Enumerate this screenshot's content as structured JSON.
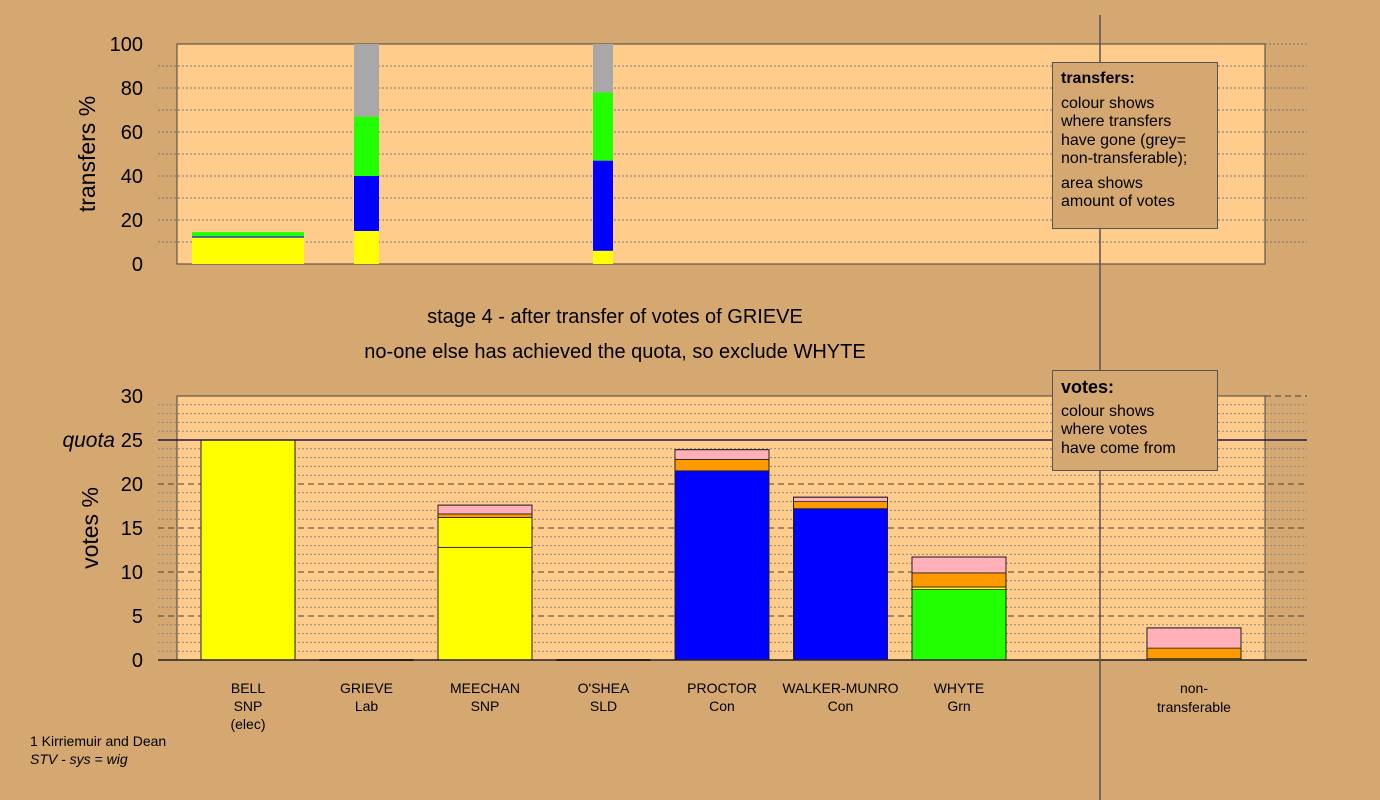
{
  "colors": {
    "background": "#d4a870",
    "plot_background": "#ffcc8c",
    "SNP": "#ffff00",
    "Con": "#0000ff",
    "Grn": "#22ff00",
    "SLD": "#ff9900",
    "Lab": "#ffb0b8",
    "non_transferable": "#a8a8a8"
  },
  "stage_title": "stage 4 - after transfer of votes of GRIEVE",
  "stage_subtitle": "no-one else has achieved the quota, so exclude WHYTE",
  "legend_transfers": {
    "title": "transfers:",
    "lines_a": [
      "colour shows",
      "where transfers",
      "have gone (grey=",
      "non-transferable);"
    ],
    "lines_b": [
      "area shows",
      "amount of votes"
    ]
  },
  "legend_votes": {
    "title": "votes:",
    "lines": [
      "colour shows",
      "where votes",
      "have come from"
    ]
  },
  "footnote": {
    "line1": "1 Kirriemuir and Dean",
    "line2": "STV - sys = wig"
  },
  "chart_data": [
    {
      "type": "bar",
      "stacked": true,
      "ylabel": "transfers %",
      "ylim": [
        0,
        100
      ],
      "yticks": [
        0,
        20,
        40,
        60,
        80,
        100
      ],
      "grid": true,
      "bars": [
        {
          "source": "BELL",
          "segments": [
            {
              "party": "SNP",
              "value": 12
            },
            {
              "party": "Con",
              "value": 0.5
            },
            {
              "party": "Grn",
              "value": 2
            }
          ]
        },
        {
          "source": "GRIEVE",
          "segments": [
            {
              "party": "SNP",
              "value": 15
            },
            {
              "party": "Con",
              "value": 25
            },
            {
              "party": "Grn",
              "value": 27
            },
            {
              "party": "non-transferable",
              "value": 33
            }
          ]
        },
        {
          "source": "O'SHEA",
          "segments": [
            {
              "party": "SNP",
              "value": 6
            },
            {
              "party": "Con",
              "value": 41
            },
            {
              "party": "Grn",
              "value": 31
            },
            {
              "party": "non-transferable",
              "value": 22
            }
          ]
        }
      ]
    },
    {
      "type": "bar",
      "stacked": true,
      "ylabel": "votes %",
      "ylim": [
        0,
        30
      ],
      "yticks": [
        0,
        5,
        10,
        15,
        20,
        25,
        30
      ],
      "quota": {
        "label": "quota",
        "value": 25
      },
      "grid": true,
      "candidates": [
        {
          "name": "BELL",
          "party": "SNP",
          "note": "(elec)",
          "segments": [
            {
              "party": "SNP",
              "value": 25
            }
          ]
        },
        {
          "name": "GRIEVE",
          "party": "Lab",
          "note": "",
          "segments": []
        },
        {
          "name": "MEECHAN",
          "party": "SNP",
          "note": "",
          "segments": [
            {
              "party": "SNP",
              "value": 12.8
            },
            {
              "party": "SNP",
              "value": 3.4
            },
            {
              "party": "SLD",
              "value": 0.4
            },
            {
              "party": "Lab",
              "value": 1.0
            }
          ]
        },
        {
          "name": "O'SHEA",
          "party": "SLD",
          "note": "",
          "segments": []
        },
        {
          "name": "PROCTOR",
          "party": "Con",
          "note": "",
          "segments": [
            {
              "party": "Con",
              "value": 21.5
            },
            {
              "party": "SLD",
              "value": 1.3
            },
            {
              "party": "Lab",
              "value": 1.1
            }
          ]
        },
        {
          "name": "WALKER-MUNRO",
          "party": "Con",
          "note": "",
          "segments": [
            {
              "party": "Con",
              "value": 17.2
            },
            {
              "party": "SLD",
              "value": 0.8
            },
            {
              "party": "Lab",
              "value": 0.5
            }
          ]
        },
        {
          "name": "WHYTE",
          "party": "Grn",
          "note": "",
          "segments": [
            {
              "party": "Grn",
              "value": 8.0
            },
            {
              "party": "SNP",
              "value": 0.3
            },
            {
              "party": "SLD",
              "value": 1.6
            },
            {
              "party": "Lab",
              "value": 1.8
            }
          ]
        }
      ],
      "non_transferable": {
        "label_line1": "non-",
        "label_line2": "transferable",
        "segments": [
          {
            "party": "SNP",
            "value": 0.15
          },
          {
            "party": "SLD",
            "value": 1.2
          },
          {
            "party": "Lab",
            "value": 2.3
          }
        ]
      }
    }
  ]
}
